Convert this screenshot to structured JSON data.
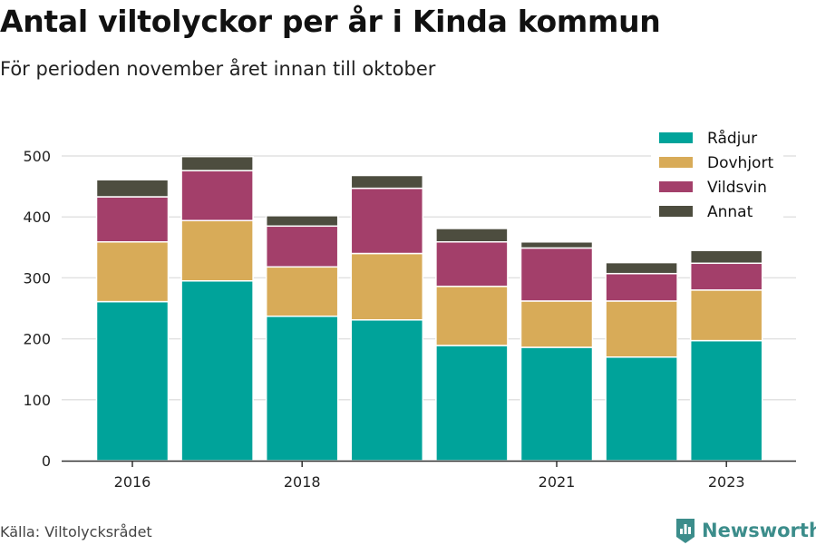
{
  "header": {
    "title": "Antal viltolyckor per år i Kinda kommun",
    "subtitle": "För perioden november året innan till oktober"
  },
  "footer": {
    "source": "Källa: Viltolycksrådet",
    "brand": "Newsworthy",
    "brand_color": "#3c8d8b"
  },
  "chart_data": {
    "type": "bar",
    "stacked": true,
    "categories": [
      "2016",
      "2017",
      "2018",
      "2019",
      "2020",
      "2021",
      "2022",
      "2023"
    ],
    "x_tick_labels": [
      "2016",
      "",
      "2018",
      "",
      "",
      "2021",
      "",
      "2023"
    ],
    "y_ticks": [
      "0",
      "100",
      "200",
      "300",
      "400",
      "500"
    ],
    "ylim": [
      0,
      500
    ],
    "grid": true,
    "legend_position": "top-right",
    "series": [
      {
        "name": "Rådjur",
        "color": "#00a39a",
        "values": [
          261,
          295,
          237,
          231,
          189,
          186,
          170,
          197
        ]
      },
      {
        "name": "Dovhjort",
        "color": "#d8ab58",
        "values": [
          98,
          99,
          81,
          109,
          97,
          76,
          92,
          83
        ]
      },
      {
        "name": "Vildsvin",
        "color": "#a33f6a",
        "values": [
          74,
          82,
          67,
          107,
          73,
          87,
          45,
          44
        ]
      },
      {
        "name": "Annat",
        "color": "#4d4d3f",
        "values": [
          28,
          23,
          17,
          21,
          22,
          10,
          18,
          21
        ]
      }
    ]
  }
}
